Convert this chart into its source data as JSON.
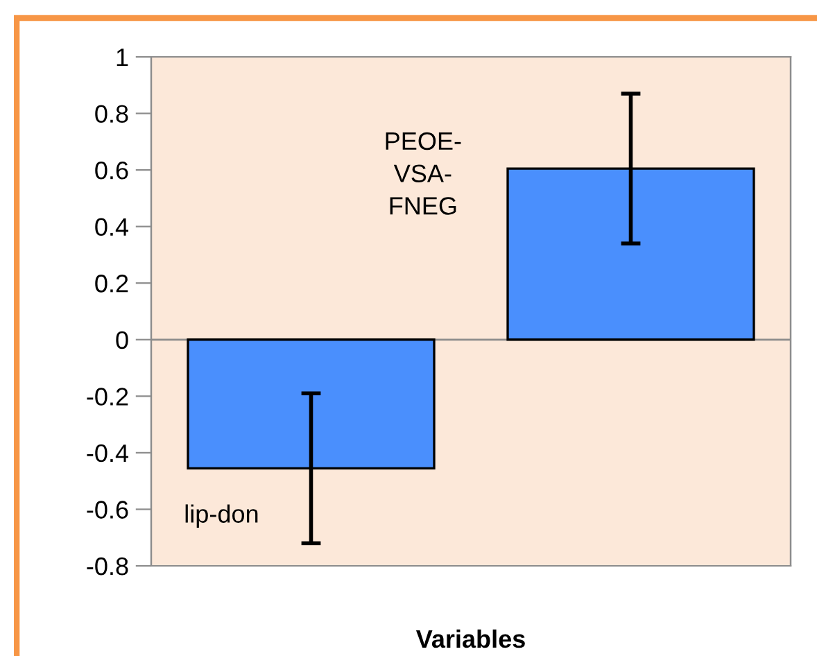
{
  "chart_data": {
    "type": "bar",
    "xlabel": "Variables",
    "categories": [
      null,
      null
    ],
    "annotations": [
      "lip-don",
      "PEOE-VSA-FNEG"
    ],
    "values": [
      -0.455,
      0.605
    ],
    "errors": [
      [
        -0.72,
        -0.19
      ],
      [
        0.34,
        0.87
      ]
    ],
    "color": "#4a8ffd",
    "ylim": [
      -0.8,
      1
    ],
    "yticks": [
      -0.8,
      -0.6,
      -0.4,
      -0.2,
      0,
      0.2,
      0.4,
      0.6,
      0.8,
      1
    ],
    "ref_lines": [
      {
        "axis": "y",
        "value": 0,
        "color": "#8c8c8c"
      }
    ],
    "grid": false
  }
}
